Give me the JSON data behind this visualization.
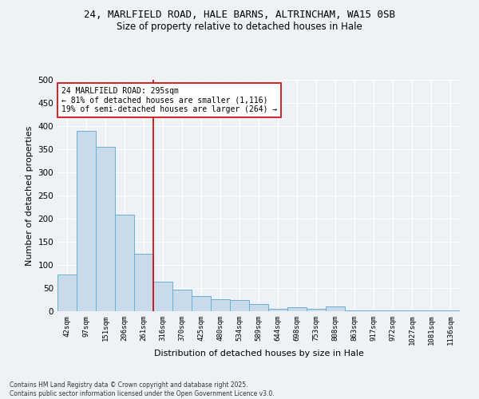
{
  "title_line1": "24, MARLFIELD ROAD, HALE BARNS, ALTRINCHAM, WA15 0SB",
  "title_line2": "Size of property relative to detached houses in Hale",
  "xlabel": "Distribution of detached houses by size in Hale",
  "ylabel": "Number of detached properties",
  "categories": [
    "42sqm",
    "97sqm",
    "151sqm",
    "206sqm",
    "261sqm",
    "316sqm",
    "370sqm",
    "425sqm",
    "480sqm",
    "534sqm",
    "589sqm",
    "644sqm",
    "698sqm",
    "753sqm",
    "808sqm",
    "863sqm",
    "917sqm",
    "972sqm",
    "1027sqm",
    "1081sqm",
    "1136sqm"
  ],
  "values": [
    80,
    390,
    355,
    208,
    125,
    63,
    46,
    33,
    26,
    25,
    15,
    5,
    9,
    5,
    10,
    1,
    2,
    1,
    1,
    1,
    2
  ],
  "bar_color": "#c9daea",
  "bar_edge_color": "#6baed6",
  "vline_x_index": 5,
  "vline_color": "#cc0000",
  "annotation_text": "24 MARLFIELD ROAD: 295sqm\n← 81% of detached houses are smaller (1,116)\n19% of semi-detached houses are larger (264) →",
  "annotation_box_color": "#ffffff",
  "annotation_box_edge": "#cc0000",
  "ylim": [
    0,
    500
  ],
  "yticks": [
    0,
    50,
    100,
    150,
    200,
    250,
    300,
    350,
    400,
    450,
    500
  ],
  "background_color": "#eef2f7",
  "grid_color": "#ffffff",
  "footer_line1": "Contains HM Land Registry data © Crown copyright and database right 2025.",
  "footer_line2": "Contains public sector information licensed under the Open Government Licence v3.0."
}
